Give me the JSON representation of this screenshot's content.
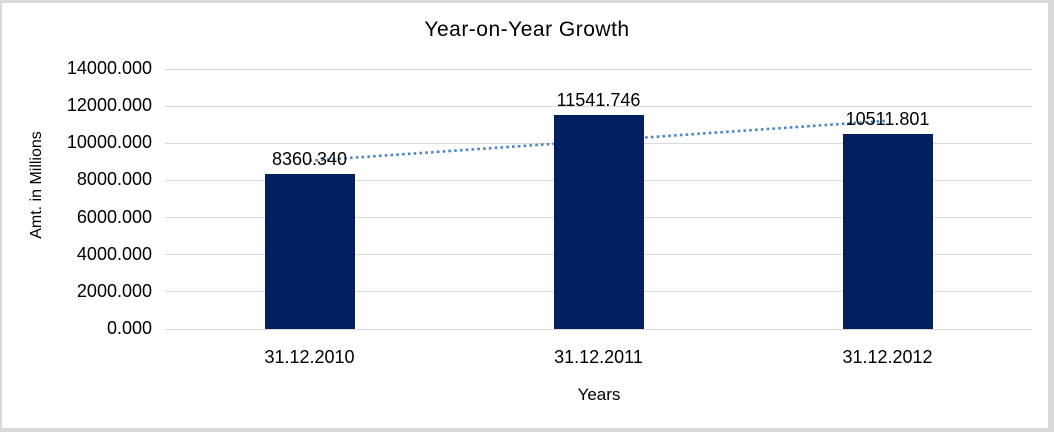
{
  "frame": {
    "border_color": "#d9d9d9",
    "background": "#ffffff"
  },
  "chart_data": {
    "type": "bar",
    "title": "Year-on-Year Growth",
    "xlabel": "Years",
    "ylabel": "Amt. in Millions",
    "categories": [
      "31.12.2010",
      "31.12.2011",
      "31.12.2012"
    ],
    "values": [
      8360.34,
      11541.746,
      10511.801
    ],
    "data_labels": [
      "8360.340",
      "11541.746",
      "10511.801"
    ],
    "y_ticks": [
      "14000.000",
      "12000.000",
      "10000.000",
      "8000.000",
      "6000.000",
      "4000.000",
      "2000.000",
      "0.000"
    ],
    "ylim": [
      0,
      14000
    ],
    "y_tick_interval": 2000,
    "grid": true,
    "legend": "none",
    "bar_color": "#002060",
    "gridline_color": "#d9d9d9",
    "text_color": "#000000",
    "trendline": {
      "type": "linear",
      "style": "dotted",
      "color": "#4a86c8",
      "behind_bars": true
    }
  }
}
